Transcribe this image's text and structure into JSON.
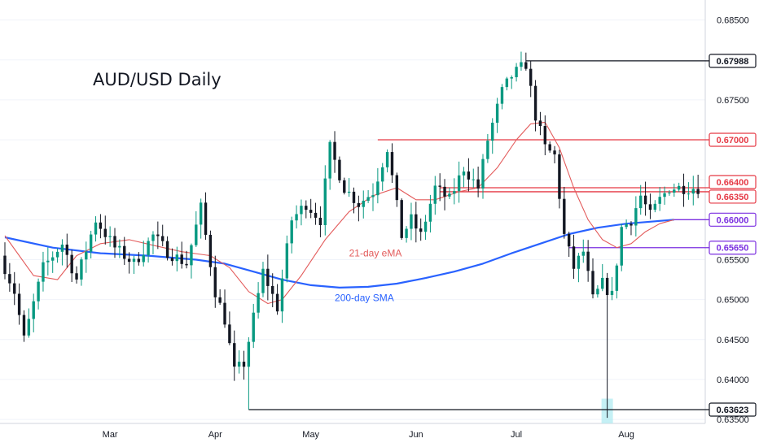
{
  "chart_data": {
    "type": "candlestick",
    "title": "AUD/USD Daily",
    "ylim": [
      0.6345,
      0.6875
    ],
    "y_ticks": [
      0.685,
      0.68,
      0.675,
      0.67,
      0.665,
      0.66,
      0.655,
      0.65,
      0.645,
      0.64,
      0.635
    ],
    "y_tick_labels": [
      "0.68500",
      "0.68000",
      "0.67500",
      "0.67000",
      "0.66500",
      "0.66000",
      "0.65500",
      "0.65000",
      "0.64500",
      "0.64000",
      "0.63500"
    ],
    "x_ticks": [
      {
        "label": "Mar",
        "index": 22
      },
      {
        "label": "Apr",
        "index": 44
      },
      {
        "label": "May",
        "index": 64
      },
      {
        "label": "Jun",
        "index": 86
      },
      {
        "label": "Jul",
        "index": 107
      },
      {
        "label": "Aug",
        "index": 130
      }
    ],
    "candles_count": 146,
    "colors": {
      "up": "#089981",
      "down": "#131722",
      "ema": "#e35b5b",
      "sma": "#2962ff",
      "red_level": "#e53945",
      "purple_level": "#7b2fe0",
      "black_level": "#131722"
    },
    "annotations": [
      {
        "text": "21-day eMA",
        "color": "#e35b5b",
        "index": 72,
        "value": 0.6554
      },
      {
        "text": "200-day SMA",
        "color": "#2962ff",
        "index": 69,
        "value": 0.6498
      }
    ],
    "levels": [
      {
        "value": 0.67988,
        "label": "0.67988",
        "color": "#131722",
        "from_index": 109,
        "badge_style": "dark"
      },
      {
        "value": 0.67,
        "label": "0.67000",
        "color": "#e53945",
        "from_index": 78,
        "badge_style": "red"
      },
      {
        "value": 0.664,
        "label": "0.66400",
        "color": "#e53945",
        "from_index": 91,
        "badge_style": "red"
      },
      {
        "value": 0.6635,
        "label": "0.66350",
        "color": "#e53945",
        "from_index": 91,
        "badge_style": "red"
      },
      {
        "value": 0.66,
        "label": "0.66000",
        "color": "#7b2fe0",
        "from_index": 140,
        "badge_style": "purple"
      },
      {
        "value": 0.6565,
        "label": "0.65650",
        "color": "#7b2fe0",
        "from_index": 118,
        "badge_style": "purple"
      },
      {
        "value": 0.63623,
        "label": "0.63623",
        "color": "#131722",
        "from_index": 51,
        "badge_style": "dark"
      }
    ],
    "highlight": {
      "index": 126,
      "low": 0.6345,
      "high": 0.6376
    },
    "segments": [
      [
        0,
        0.6555
      ],
      [
        3,
        0.651
      ],
      [
        5,
        0.645
      ],
      [
        9,
        0.654
      ],
      [
        13,
        0.657
      ],
      [
        16,
        0.6525
      ],
      [
        20,
        0.66
      ],
      [
        24,
        0.6565
      ],
      [
        28,
        0.6545
      ],
      [
        32,
        0.658
      ],
      [
        35,
        0.656
      ],
      [
        39,
        0.6545
      ],
      [
        42,
        0.6615
      ],
      [
        45,
        0.651
      ],
      [
        47,
        0.6475
      ],
      [
        49,
        0.641
      ],
      [
        51,
        0.642
      ],
      [
        55,
        0.6535
      ],
      [
        58,
        0.649
      ],
      [
        61,
        0.66
      ],
      [
        64,
        0.662
      ],
      [
        67,
        0.66
      ],
      [
        69,
        0.669
      ],
      [
        72,
        0.664
      ],
      [
        75,
        0.662
      ],
      [
        78,
        0.6635
      ],
      [
        81,
        0.669
      ],
      [
        84,
        0.658
      ],
      [
        86,
        0.66
      ],
      [
        88,
        0.658
      ],
      [
        91,
        0.664
      ],
      [
        94,
        0.6625
      ],
      [
        97,
        0.6665
      ],
      [
        100,
        0.664
      ],
      [
        102,
        0.67
      ],
      [
        105,
        0.676
      ],
      [
        107,
        0.678
      ],
      [
        110,
        0.6795
      ],
      [
        112,
        0.673
      ],
      [
        114,
        0.669
      ],
      [
        116,
        0.668
      ],
      [
        118,
        0.658
      ],
      [
        120,
        0.654
      ],
      [
        122,
        0.656
      ],
      [
        124,
        0.65
      ],
      [
        126,
        0.652
      ],
      [
        128,
        0.6505
      ],
      [
        130,
        0.659
      ],
      [
        132,
        0.66
      ],
      [
        134,
        0.663
      ],
      [
        136,
        0.6605
      ],
      [
        138,
        0.6625
      ],
      [
        140,
        0.664
      ]
    ],
    "ema_series": [
      [
        0,
        0.658
      ],
      [
        6,
        0.653
      ],
      [
        11,
        0.6525
      ],
      [
        15,
        0.6555
      ],
      [
        20,
        0.657
      ],
      [
        26,
        0.6575
      ],
      [
        31,
        0.6568
      ],
      [
        37,
        0.656
      ],
      [
        43,
        0.6555
      ],
      [
        47,
        0.654
      ],
      [
        51,
        0.651
      ],
      [
        55,
        0.6495
      ],
      [
        58,
        0.65
      ],
      [
        62,
        0.653
      ],
      [
        67,
        0.6575
      ],
      [
        72,
        0.661
      ],
      [
        77,
        0.663
      ],
      [
        82,
        0.664
      ],
      [
        86,
        0.6625
      ],
      [
        90,
        0.6625
      ],
      [
        95,
        0.6635
      ],
      [
        99,
        0.664
      ],
      [
        103,
        0.6665
      ],
      [
        107,
        0.67
      ],
      [
        110,
        0.672
      ],
      [
        113,
        0.6722
      ],
      [
        116,
        0.669
      ],
      [
        119,
        0.664
      ],
      [
        122,
        0.66
      ],
      [
        125,
        0.6575
      ],
      [
        128,
        0.6565
      ],
      [
        131,
        0.657
      ],
      [
        134,
        0.6585
      ],
      [
        137,
        0.6595
      ],
      [
        140,
        0.66
      ]
    ],
    "sma_series": [
      [
        0,
        0.6578
      ],
      [
        10,
        0.6565
      ],
      [
        20,
        0.6558
      ],
      [
        30,
        0.6555
      ],
      [
        40,
        0.655
      ],
      [
        46,
        0.6545
      ],
      [
        52,
        0.6535
      ],
      [
        58,
        0.6525
      ],
      [
        64,
        0.6518
      ],
      [
        70,
        0.6515
      ],
      [
        76,
        0.6516
      ],
      [
        82,
        0.652
      ],
      [
        88,
        0.6527
      ],
      [
        94,
        0.6535
      ],
      [
        100,
        0.6545
      ],
      [
        106,
        0.6558
      ],
      [
        112,
        0.657
      ],
      [
        118,
        0.6582
      ],
      [
        124,
        0.659
      ],
      [
        130,
        0.6595
      ],
      [
        136,
        0.6598
      ],
      [
        140,
        0.66
      ]
    ]
  }
}
